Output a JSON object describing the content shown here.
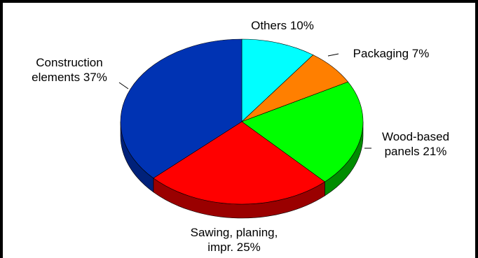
{
  "chart_data": {
    "type": "pie",
    "style": "3d",
    "slices": [
      {
        "label_lines": [
          "Others  10%"
        ],
        "value": 10,
        "color": "#00FFFF",
        "side": "#00B3B3"
      },
      {
        "label_lines": [
          "Packaging  7%"
        ],
        "value": 7,
        "color": "#FF7F00",
        "side": "#B35900"
      },
      {
        "label_lines": [
          "Wood-based",
          "panels  21%"
        ],
        "value": 21,
        "color": "#00FF00",
        "side": "#008C00"
      },
      {
        "label_lines": [
          "Sawing, planing,",
          "impr.  25%"
        ],
        "value": 25,
        "color": "#FF0000",
        "side": "#9A0000"
      },
      {
        "label_lines": [
          "Construction",
          "elements  37%"
        ],
        "value": 37,
        "color": "#0033B3",
        "side": "#00217A"
      }
    ]
  }
}
